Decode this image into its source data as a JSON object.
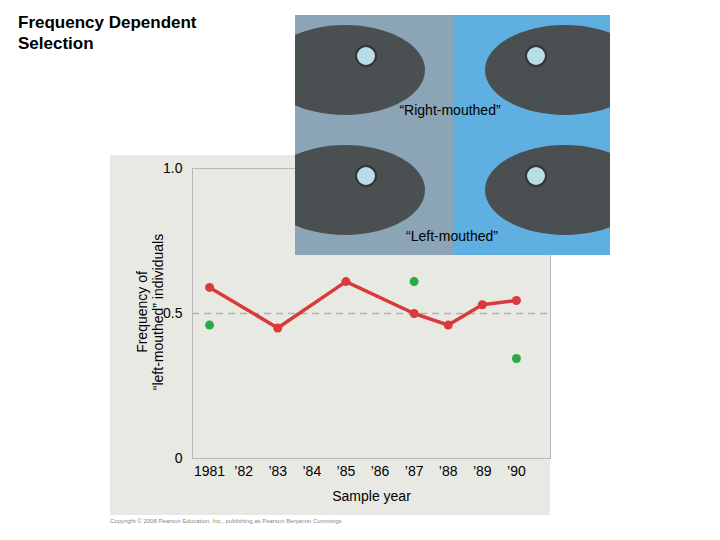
{
  "chart_data": {
    "type": "line",
    "title": "Frequency Dependent Selection",
    "y_label": "Frequency of\n“left-mouthed” individuals",
    "x_label": "Sample year",
    "annotations": [
      "“Right-mouthed”",
      "“Left-mouthed”"
    ],
    "caption": "Copyright © 2008 Pearson Education, Inc., publishing as Pearson Benjamin Cummings.",
    "series": [
      {
        "type": "line",
        "color": "#d93a3a",
        "marker": "circle",
        "line_style": "solid",
        "x": [
          1981,
          1983,
          1985,
          1987,
          1988,
          1989,
          1990
        ],
        "values": [
          0.59,
          0.45,
          0.61,
          0.5,
          0.46,
          0.53,
          0.545
        ]
      },
      {
        "type": "scatter",
        "color": "#2aa84a",
        "marker": "circle",
        "x": [
          1981,
          1987,
          1990
        ],
        "values": [
          0.46,
          0.61,
          0.345
        ]
      }
    ],
    "xlim": [
      1980.5,
      1991
    ],
    "xticks": [
      1981,
      {
        "value": 1982,
        "label": "’82"
      },
      {
        "value": 1983,
        "label": "’83"
      },
      {
        "value": 1984,
        "label": "’84"
      },
      {
        "value": 1985,
        "label": "’85"
      },
      {
        "value": 1986,
        "label": "’86"
      },
      {
        "value": 1987,
        "label": "’87"
      },
      {
        "value": 1988,
        "label": "’88"
      },
      {
        "value": 1989,
        "label": "’89"
      },
      {
        "value": 1990,
        "label": "’90"
      }
    ],
    "ylim": [
      0,
      1
    ],
    "yticks": [
      0,
      0.5,
      {
        "value": 1,
        "label": "1.0"
      }
    ],
    "reference_line": 0.5
  }
}
